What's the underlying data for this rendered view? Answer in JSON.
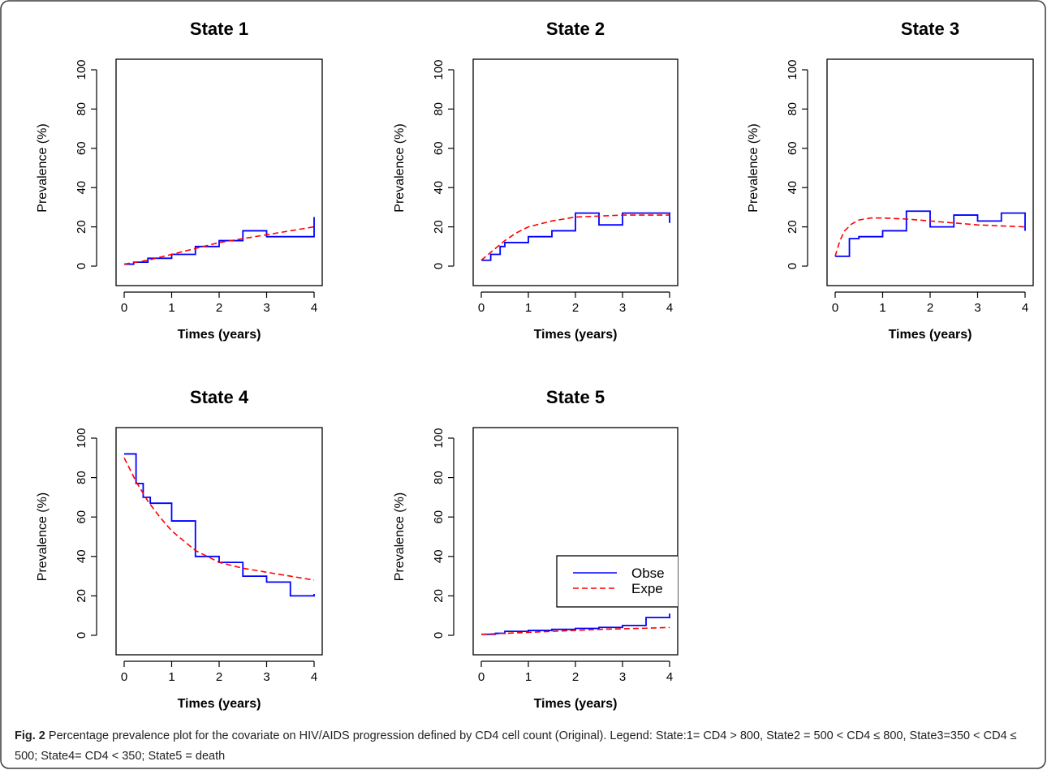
{
  "figure": {
    "label": "Fig. 2",
    "caption": "Percentage prevalence plot for the covariate on HIV/AIDS progression defined by CD4 cell count (Original). Legend: State:1= CD4 > 800, State2 = 500 < CD4 ≤ 800, State3=350 < CD4 ≤ 500; State4= CD4 < 350; State5 = death"
  },
  "colors": {
    "observed": "#0000ff",
    "expected": "#ff0000",
    "axis": "#000000"
  },
  "chart_data": [
    {
      "type": "line",
      "title": "State 1",
      "xlabel": "Times (years)",
      "ylabel": "Prevalence (%)",
      "xlim": [
        0,
        4
      ],
      "ylim": [
        0,
        100
      ],
      "xticks": [
        0,
        1,
        2,
        3,
        4
      ],
      "yticks": [
        0,
        20,
        40,
        60,
        80,
        100
      ],
      "series": [
        {
          "style": "step-solid",
          "x": [
            0,
            0.2,
            0.5,
            1.0,
            1.5,
            2.0,
            2.5,
            3.0,
            3.5,
            4.0,
            4.0
          ],
          "y": [
            1,
            2,
            4,
            6,
            10,
            13,
            18,
            15,
            15,
            15,
            25
          ]
        },
        {
          "style": "dashed",
          "x": [
            0,
            0.5,
            1.0,
            1.5,
            2.0,
            2.5,
            3.0,
            3.5,
            4.0
          ],
          "y": [
            1,
            3,
            6,
            9,
            12,
            14,
            16,
            18,
            20
          ]
        }
      ]
    },
    {
      "type": "line",
      "title": "State 2",
      "xlabel": "Times (years)",
      "ylabel": "Prevalence (%)",
      "xlim": [
        0,
        4
      ],
      "ylim": [
        0,
        100
      ],
      "xticks": [
        0,
        1,
        2,
        3,
        4
      ],
      "yticks": [
        0,
        20,
        40,
        60,
        80,
        100
      ],
      "series": [
        {
          "style": "step-solid",
          "x": [
            0,
            0.2,
            0.4,
            0.5,
            1.0,
            1.5,
            2.0,
            2.5,
            3.0,
            3.5,
            4.0,
            4.0
          ],
          "y": [
            3,
            6,
            10,
            12,
            15,
            18,
            27,
            21,
            27,
            27,
            27,
            22
          ]
        },
        {
          "style": "dashed",
          "x": [
            0,
            0.25,
            0.5,
            0.75,
            1.0,
            1.5,
            2.0,
            2.5,
            3.0,
            3.5,
            4.0
          ],
          "y": [
            3,
            8,
            13,
            17,
            20,
            23,
            25,
            25.5,
            26,
            26,
            26
          ]
        }
      ]
    },
    {
      "type": "line",
      "title": "State 3",
      "xlabel": "Times (years)",
      "ylabel": "Prevalence (%)",
      "xlim": [
        0,
        4
      ],
      "ylim": [
        0,
        100
      ],
      "xticks": [
        0,
        1,
        2,
        3,
        4
      ],
      "yticks": [
        0,
        20,
        40,
        60,
        80,
        100
      ],
      "series": [
        {
          "style": "step-solid",
          "x": [
            0,
            0.3,
            0.5,
            1.0,
            1.5,
            2.0,
            2.5,
            3.0,
            3.5,
            4.0,
            4.0
          ],
          "y": [
            5,
            14,
            15,
            18,
            28,
            20,
            26,
            23,
            27,
            20,
            18
          ]
        },
        {
          "style": "dashed",
          "x": [
            0,
            0.1,
            0.2,
            0.35,
            0.5,
            0.75,
            1.0,
            1.5,
            2.0,
            2.5,
            3.0,
            3.5,
            4.0
          ],
          "y": [
            5,
            13,
            18,
            21.5,
            23.5,
            24.5,
            24.5,
            24,
            23,
            22,
            21,
            20.5,
            20
          ]
        }
      ]
    },
    {
      "type": "line",
      "title": "State 4",
      "xlabel": "Times (years)",
      "ylabel": "Prevalence (%)",
      "xlim": [
        0,
        4
      ],
      "ylim": [
        0,
        100
      ],
      "xticks": [
        0,
        1,
        2,
        3,
        4
      ],
      "yticks": [
        0,
        20,
        40,
        60,
        80,
        100
      ],
      "series": [
        {
          "style": "step-solid",
          "x": [
            0,
            0.25,
            0.4,
            0.55,
            1.0,
            1.5,
            2.0,
            2.5,
            3.0,
            3.5,
            4.0
          ],
          "y": [
            92,
            77,
            70,
            67,
            58,
            40,
            37,
            30,
            27,
            20,
            21
          ]
        },
        {
          "style": "dashed",
          "x": [
            0,
            0.25,
            0.5,
            0.75,
            1.0,
            1.5,
            2.0,
            2.5,
            3.0,
            3.5,
            4.0
          ],
          "y": [
            90,
            78,
            68,
            60,
            53,
            43,
            37,
            34,
            32,
            30,
            28
          ]
        }
      ]
    },
    {
      "type": "line",
      "title": "State 5",
      "xlabel": "Times (years)",
      "ylabel": "Prevalence (%)",
      "xlim": [
        0,
        4
      ],
      "ylim": [
        0,
        100
      ],
      "xticks": [
        0,
        1,
        2,
        3,
        4
      ],
      "yticks": [
        0,
        20,
        40,
        60,
        80,
        100
      ],
      "legend": {
        "position": "right",
        "entries": [
          "Obse",
          "Expe"
        ]
      },
      "series": [
        {
          "style": "step-solid",
          "legend_label": "Obse",
          "x": [
            0,
            0.3,
            0.5,
            1.0,
            1.5,
            2.0,
            2.5,
            3.0,
            3.5,
            4.0
          ],
          "y": [
            0.5,
            1,
            2,
            2.5,
            3,
            3.5,
            4,
            5,
            9,
            11
          ]
        },
        {
          "style": "dashed",
          "legend_label": "Expe",
          "x": [
            0,
            0.5,
            1.0,
            1.5,
            2.0,
            2.5,
            3.0,
            3.5,
            4.0
          ],
          "y": [
            0.5,
            1,
            1.5,
            2,
            2.5,
            3,
            3.3,
            3.6,
            4
          ]
        }
      ]
    }
  ]
}
